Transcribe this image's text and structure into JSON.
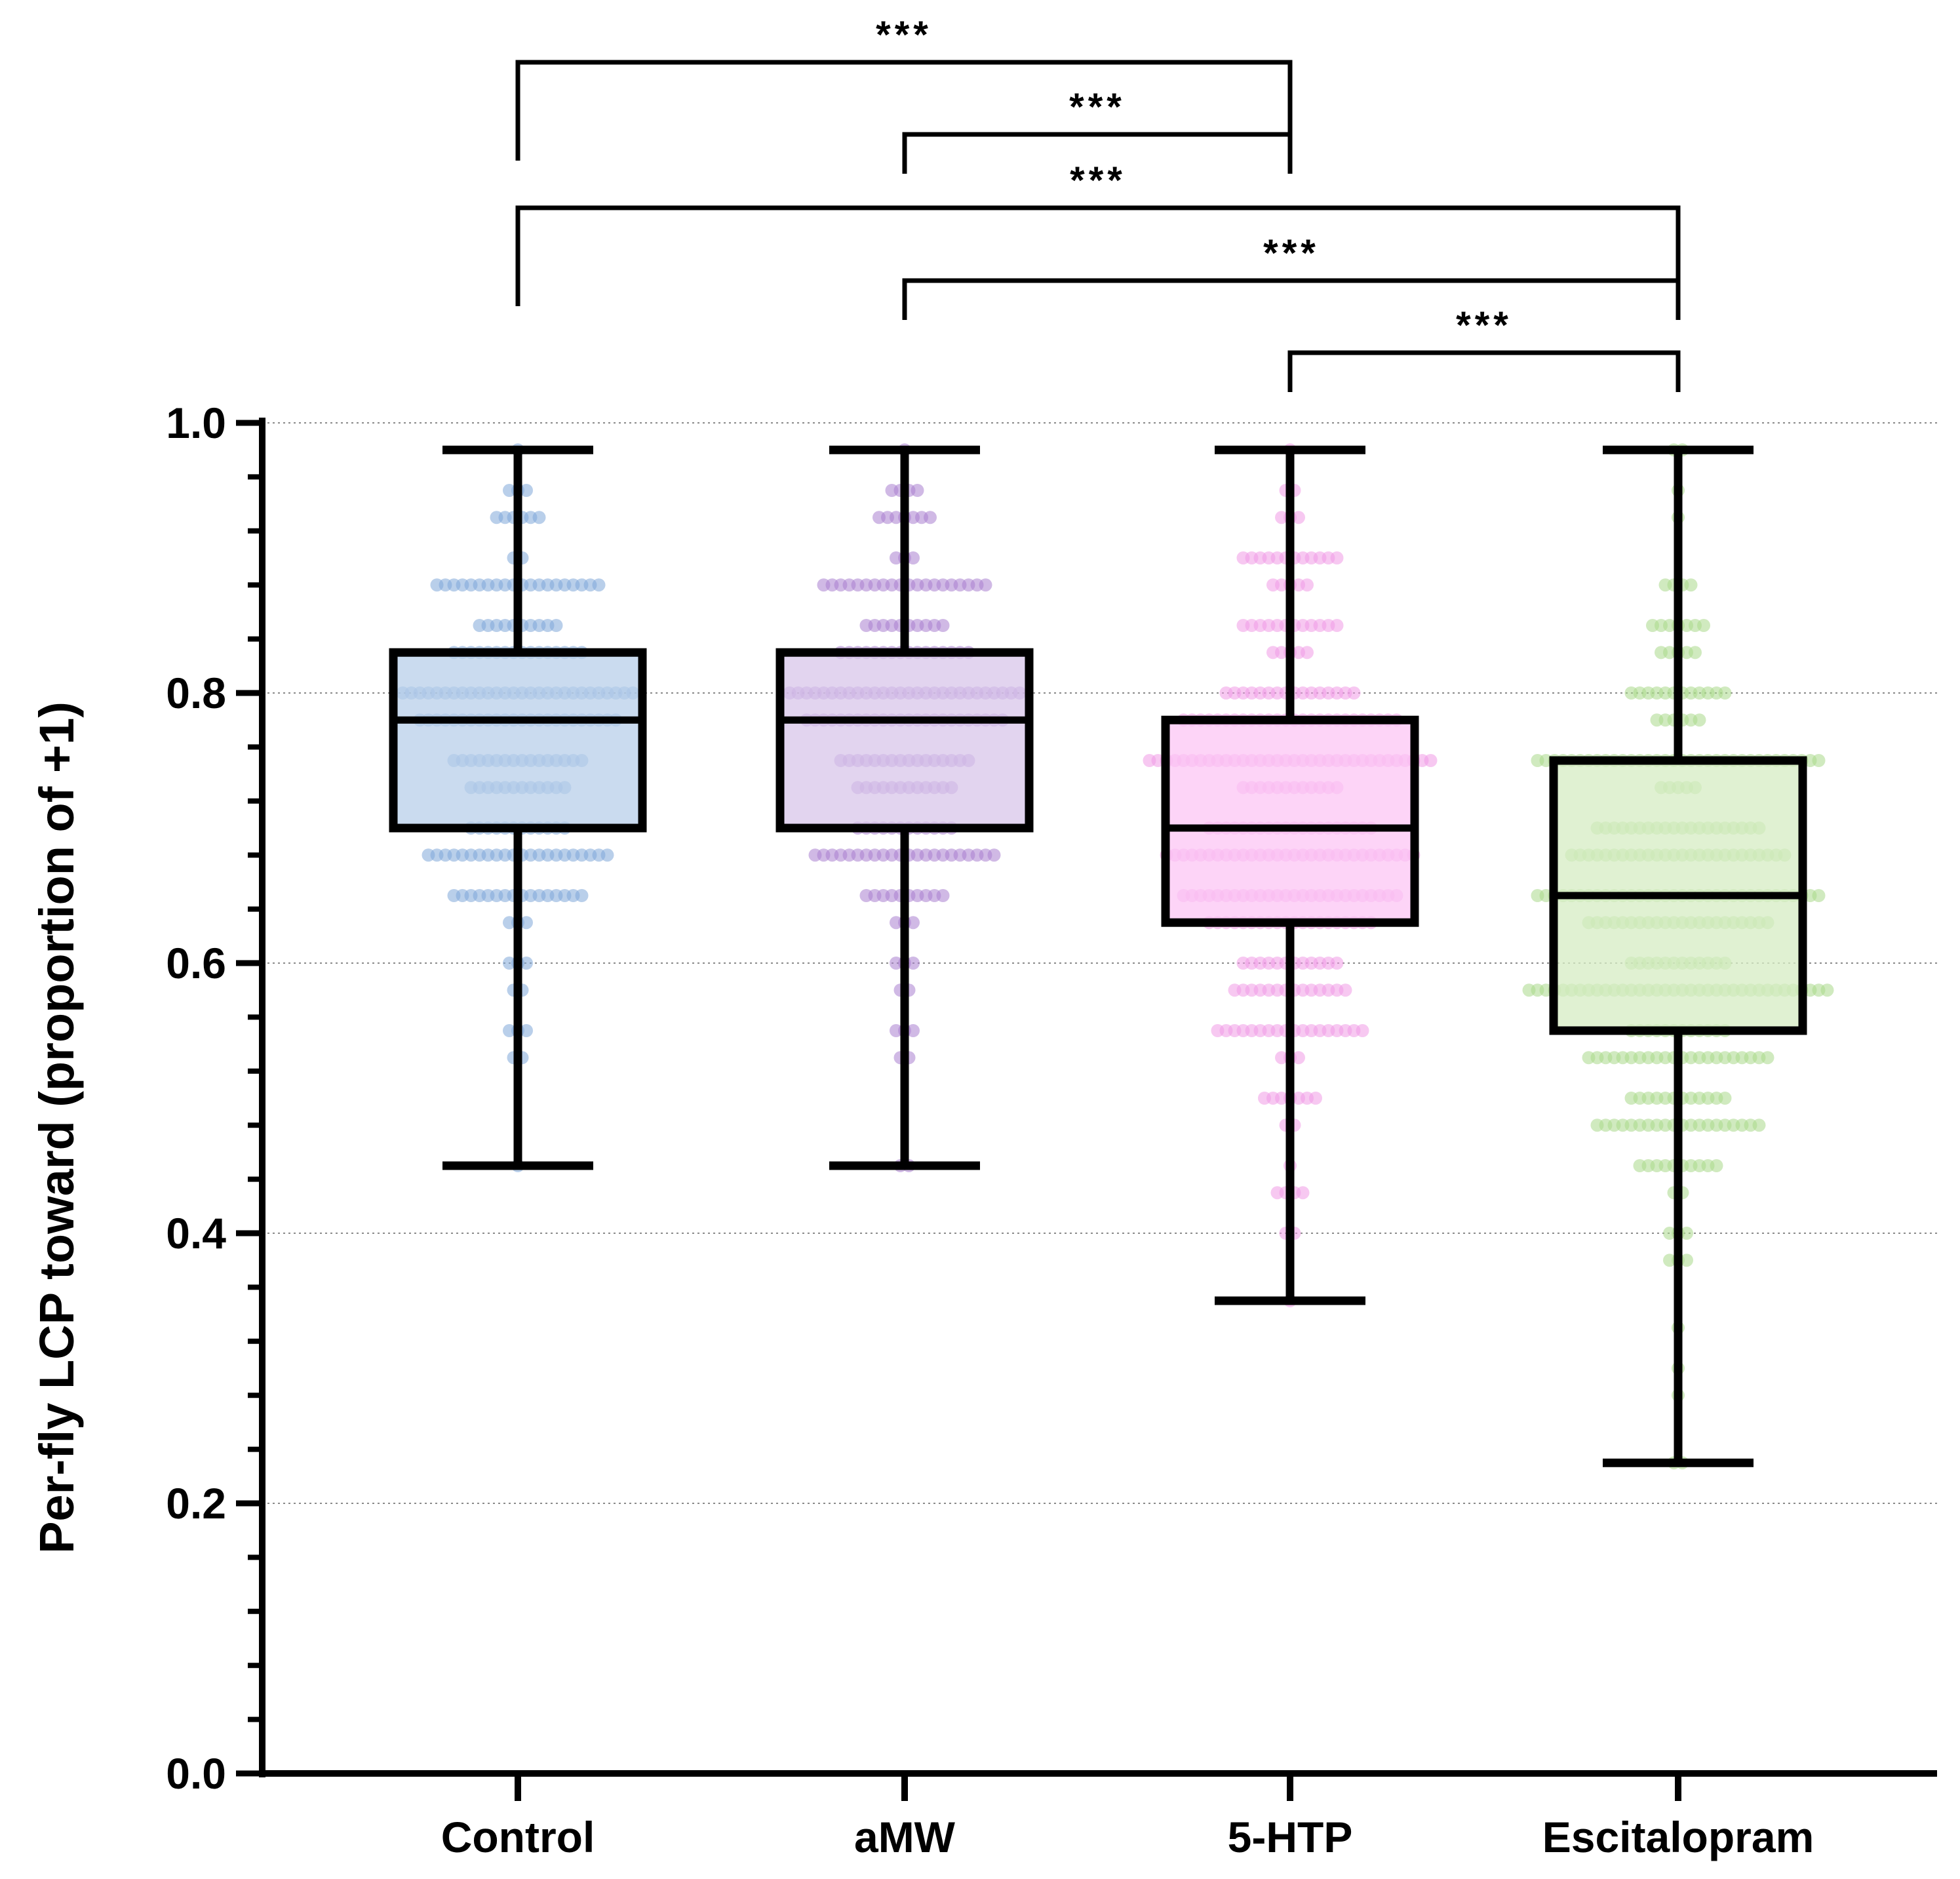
{
  "chart_data": {
    "type": "box",
    "title": "",
    "xlabel": "",
    "ylabel": "Per-fly LCP toward (proportion of +1)",
    "ylim": [
      0,
      1.0
    ],
    "yticks": [
      0.0,
      0.2,
      0.4,
      0.6,
      0.8,
      1.0
    ],
    "ytick_labels": [
      "0.0",
      "0.2",
      "0.4",
      "0.6",
      "0.8",
      "1.0"
    ],
    "grid": "horizontal dotted",
    "categories": [
      "Control",
      "aMW",
      "5-HTP",
      "Escitalopram"
    ],
    "series": [
      {
        "name": "Control",
        "color": "#7fa7d9",
        "box_fill": "#b8cfea",
        "min": 0.45,
        "q1": 0.7,
        "median": 0.78,
        "q3": 0.83,
        "max": 0.98,
        "points": [
          {
            "y": 0.98,
            "n": 1
          },
          {
            "y": 0.95,
            "n": 3
          },
          {
            "y": 0.93,
            "n": 6
          },
          {
            "y": 0.9,
            "n": 2
          },
          {
            "y": 0.88,
            "n": 20
          },
          {
            "y": 0.85,
            "n": 10
          },
          {
            "y": 0.83,
            "n": 16
          },
          {
            "y": 0.8,
            "n": 28
          },
          {
            "y": 0.78,
            "n": 24
          },
          {
            "y": 0.75,
            "n": 16
          },
          {
            "y": 0.73,
            "n": 12
          },
          {
            "y": 0.7,
            "n": 12
          },
          {
            "y": 0.68,
            "n": 22
          },
          {
            "y": 0.65,
            "n": 16
          },
          {
            "y": 0.63,
            "n": 3
          },
          {
            "y": 0.6,
            "n": 3
          },
          {
            "y": 0.58,
            "n": 2
          },
          {
            "y": 0.55,
            "n": 3
          },
          {
            "y": 0.53,
            "n": 2
          },
          {
            "y": 0.45,
            "n": 1
          }
        ]
      },
      {
        "name": "aMW",
        "color": "#a97fcf",
        "box_fill": "#d8c5ea",
        "min": 0.45,
        "q1": 0.7,
        "median": 0.78,
        "q3": 0.83,
        "max": 0.98,
        "points": [
          {
            "y": 0.98,
            "n": 1
          },
          {
            "y": 0.95,
            "n": 4
          },
          {
            "y": 0.93,
            "n": 7
          },
          {
            "y": 0.9,
            "n": 3
          },
          {
            "y": 0.88,
            "n": 20
          },
          {
            "y": 0.85,
            "n": 10
          },
          {
            "y": 0.83,
            "n": 16
          },
          {
            "y": 0.8,
            "n": 28
          },
          {
            "y": 0.78,
            "n": 24
          },
          {
            "y": 0.75,
            "n": 16
          },
          {
            "y": 0.73,
            "n": 12
          },
          {
            "y": 0.7,
            "n": 12
          },
          {
            "y": 0.68,
            "n": 22
          },
          {
            "y": 0.65,
            "n": 10
          },
          {
            "y": 0.63,
            "n": 3
          },
          {
            "y": 0.6,
            "n": 3
          },
          {
            "y": 0.58,
            "n": 2
          },
          {
            "y": 0.55,
            "n": 3
          },
          {
            "y": 0.53,
            "n": 2
          },
          {
            "y": 0.45,
            "n": 2
          }
        ]
      },
      {
        "name": "5-HTP",
        "color": "#f19ae6",
        "box_fill": "#fcc6f4",
        "min": 0.35,
        "q1": 0.63,
        "median": 0.7,
        "q3": 0.78,
        "max": 0.98,
        "points": [
          {
            "y": 0.98,
            "n": 1
          },
          {
            "y": 0.95,
            "n": 2
          },
          {
            "y": 0.93,
            "n": 3
          },
          {
            "y": 0.9,
            "n": 12
          },
          {
            "y": 0.88,
            "n": 5
          },
          {
            "y": 0.85,
            "n": 12
          },
          {
            "y": 0.83,
            "n": 5
          },
          {
            "y": 0.8,
            "n": 16
          },
          {
            "y": 0.78,
            "n": 26
          },
          {
            "y": 0.75,
            "n": 34
          },
          {
            "y": 0.73,
            "n": 12
          },
          {
            "y": 0.7,
            "n": 20
          },
          {
            "y": 0.68,
            "n": 30
          },
          {
            "y": 0.65,
            "n": 26
          },
          {
            "y": 0.63,
            "n": 20
          },
          {
            "y": 0.6,
            "n": 12
          },
          {
            "y": 0.58,
            "n": 14
          },
          {
            "y": 0.55,
            "n": 18
          },
          {
            "y": 0.53,
            "n": 3
          },
          {
            "y": 0.5,
            "n": 7
          },
          {
            "y": 0.48,
            "n": 2
          },
          {
            "y": 0.45,
            "n": 1
          },
          {
            "y": 0.43,
            "n": 4
          },
          {
            "y": 0.4,
            "n": 2
          },
          {
            "y": 0.35,
            "n": 1
          }
        ]
      },
      {
        "name": "Escitalopram",
        "color": "#a9d88a",
        "box_fill": "#d6ecc3",
        "min": 0.23,
        "q1": 0.55,
        "median": 0.65,
        "q3": 0.75,
        "max": 0.98,
        "points": [
          {
            "y": 0.98,
            "n": 2
          },
          {
            "y": 0.95,
            "n": 1
          },
          {
            "y": 0.93,
            "n": 1
          },
          {
            "y": 0.88,
            "n": 4
          },
          {
            "y": 0.85,
            "n": 7
          },
          {
            "y": 0.83,
            "n": 5
          },
          {
            "y": 0.8,
            "n": 12
          },
          {
            "y": 0.78,
            "n": 6
          },
          {
            "y": 0.75,
            "n": 34
          },
          {
            "y": 0.73,
            "n": 5
          },
          {
            "y": 0.7,
            "n": 20
          },
          {
            "y": 0.68,
            "n": 26
          },
          {
            "y": 0.65,
            "n": 34
          },
          {
            "y": 0.63,
            "n": 22
          },
          {
            "y": 0.6,
            "n": 12
          },
          {
            "y": 0.58,
            "n": 36
          },
          {
            "y": 0.55,
            "n": 12
          },
          {
            "y": 0.53,
            "n": 22
          },
          {
            "y": 0.5,
            "n": 12
          },
          {
            "y": 0.48,
            "n": 20
          },
          {
            "y": 0.45,
            "n": 10
          },
          {
            "y": 0.43,
            "n": 2
          },
          {
            "y": 0.4,
            "n": 3
          },
          {
            "y": 0.38,
            "n": 3
          },
          {
            "y": 0.33,
            "n": 1
          },
          {
            "y": 0.3,
            "n": 1
          },
          {
            "y": 0.28,
            "n": 1
          },
          {
            "y": 0.23,
            "n": 2
          }
        ]
      }
    ],
    "significance": [
      {
        "from": "Control",
        "to": "5-HTP",
        "label": "***"
      },
      {
        "from": "aMW",
        "to": "5-HTP",
        "label": "***"
      },
      {
        "from": "Control",
        "to": "Escitalopram",
        "label": "***"
      },
      {
        "from": "aMW",
        "to": "Escitalopram",
        "label": "***"
      },
      {
        "from": "5-HTP",
        "to": "Escitalopram",
        "label": "***"
      }
    ]
  }
}
